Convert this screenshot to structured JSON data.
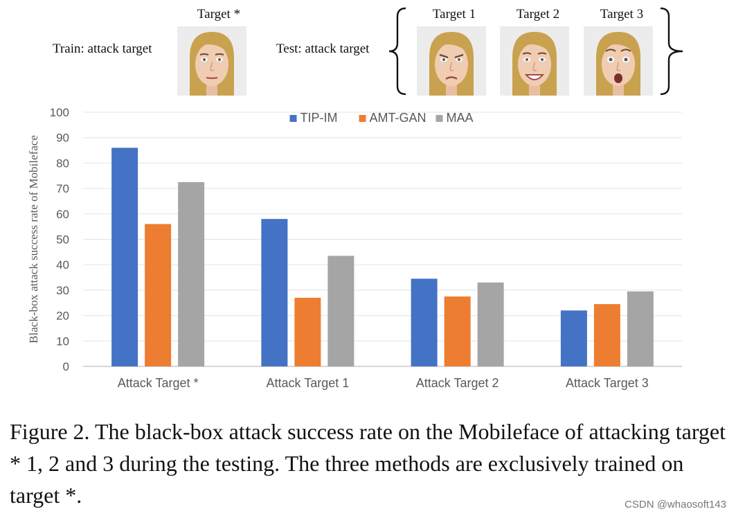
{
  "header": {
    "train_label": "Train: attack target",
    "test_label": "Test: attack target",
    "train_face": {
      "title": "Target *",
      "expression": "neutral"
    },
    "test_faces": [
      {
        "title": "Target 1",
        "expression": "frown"
      },
      {
        "title": "Target 2",
        "expression": "smile"
      },
      {
        "title": "Target 3",
        "expression": "surprise"
      }
    ]
  },
  "chart_data": {
    "type": "bar",
    "title": "",
    "xlabel": "",
    "ylabel": "Black-box attack success rate of  Mobileface",
    "ylim": [
      0,
      100
    ],
    "yticks": [
      0,
      10,
      20,
      30,
      40,
      50,
      60,
      70,
      80,
      90,
      100
    ],
    "grid": true,
    "legend_position": "top",
    "categories": [
      "Attack Target *",
      "Attack Target 1",
      "Attack Target 2",
      "Attack Target 3"
    ],
    "series": [
      {
        "name": "TIP-IM",
        "color": "#4472C4",
        "values": [
          86,
          58,
          34.5,
          22
        ]
      },
      {
        "name": "AMT-GAN",
        "color": "#ED7D31",
        "values": [
          56,
          27,
          27.5,
          24.5
        ]
      },
      {
        "name": "MAA",
        "color": "#A5A5A5",
        "values": [
          72.5,
          43.5,
          33,
          29.5
        ]
      }
    ]
  },
  "caption": "Figure 2. The black-box attack success rate on the Mobileface of attacking target * 1, 2 and 3 during the testing. The three methods are exclusively trained on target *.",
  "watermark": "CSDN @whaosoft143"
}
